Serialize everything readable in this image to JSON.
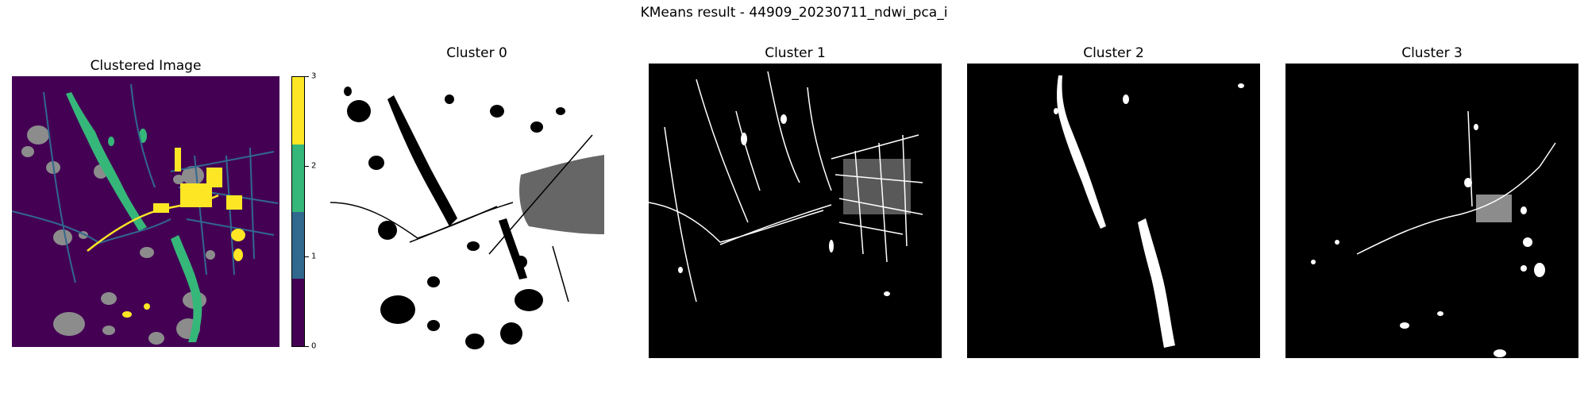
{
  "figure": {
    "title": "KMeans result - 44909_20230711_ndwi_pca_i"
  },
  "panels": [
    {
      "title": "Clustered Image"
    },
    {
      "title": "Cluster 0"
    },
    {
      "title": "Cluster 1"
    },
    {
      "title": "Cluster 2"
    },
    {
      "title": "Cluster 3"
    }
  ],
  "colorbar": {
    "ticks": [
      "0",
      "1",
      "2",
      "3"
    ],
    "range": [
      0,
      3
    ],
    "colors": [
      "#440154",
      "#31688e",
      "#35b779",
      "#fde725"
    ]
  },
  "colors": {
    "viridis_0": "#440154",
    "viridis_1": "#31688e",
    "viridis_2": "#35b779",
    "viridis_3": "#fde725",
    "nodata": "#8c8c8c",
    "mask_on": "#ffffff",
    "mask_off": "#000000"
  }
}
